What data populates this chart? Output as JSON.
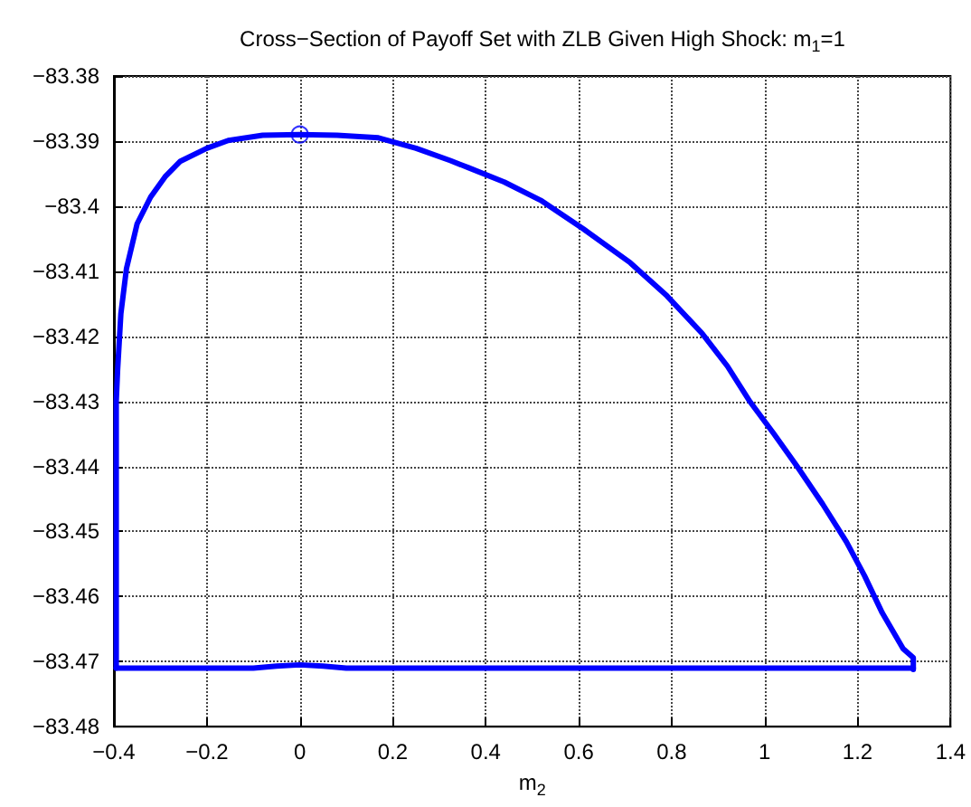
{
  "chart_data": {
    "type": "line",
    "title": "Cross−Section of Payoff Set with ZLB Given High Shock: m$_{1}$=1",
    "xlabel": "m$_{2}$",
    "series": [
      {
        "color": "#0000ff",
        "marker": "none",
        "line_style": "solid",
        "x": [
          -0.395,
          -0.395,
          -0.392,
          -0.385,
          -0.373,
          -0.35,
          -0.321,
          -0.29,
          -0.257,
          -0.2,
          -0.154,
          -0.08,
          0,
          0.08,
          0.169,
          0.25,
          0.324,
          0.363,
          0.44,
          0.518,
          0.61,
          0.711,
          0.79,
          0.866,
          0.92,
          0.969,
          1.02,
          1.072,
          1.125,
          1.176,
          1.215,
          1.253,
          1.298,
          1.32,
          1.32
        ],
        "values": [
          -83.471,
          -83.43,
          -83.4251,
          -83.4165,
          -83.4096,
          -83.4027,
          -83.3986,
          -83.3955,
          -83.3931,
          -83.3911,
          -83.3899,
          -83.3891,
          -83.389,
          -83.3891,
          -83.3895,
          -83.3911,
          -83.393,
          -83.3941,
          -83.3963,
          -83.3991,
          -83.4035,
          -83.4087,
          -83.4138,
          -83.4196,
          -83.4246,
          -83.4301,
          -83.435,
          -83.4402,
          -83.4458,
          -83.4516,
          -83.4568,
          -83.4625,
          -83.468,
          -83.4694,
          -83.4712
        ]
      },
      {
        "color": "#0000ff",
        "marker": "none",
        "line_style": "solid",
        "x": [
          -0.395,
          -0.1,
          -0.05,
          0,
          0.05,
          0.1,
          0.4,
          0.8,
          1.2,
          1.32
        ],
        "values": [
          -83.471,
          -83.471,
          -83.4707,
          -83.4705,
          -83.4707,
          -83.471,
          -83.471,
          -83.471,
          -83.471,
          -83.471
        ]
      },
      {
        "type": "scatter",
        "color": "#0000ff",
        "marker": "circle",
        "x": [
          0
        ],
        "values": [
          -83.389
        ]
      }
    ],
    "xlim": [
      -0.4,
      1.4
    ],
    "xticks": [
      {
        "value": -0.4,
        "label": "−0.4"
      },
      {
        "value": -0.2,
        "label": "−0.2"
      },
      0,
      0.2,
      0.4,
      0.6,
      0.8,
      1,
      1.2,
      1.4
    ],
    "ylim": [
      -83.48,
      -83.38
    ],
    "yticks": [
      {
        "value": -83.48,
        "label": "−83.48"
      },
      {
        "value": -83.47,
        "label": "−83.47"
      },
      {
        "value": -83.46,
        "label": "−83.46"
      },
      {
        "value": -83.45,
        "label": "−83.45"
      },
      {
        "value": -83.44,
        "label": "−83.44"
      },
      {
        "value": -83.43,
        "label": "−83.43"
      },
      {
        "value": -83.42,
        "label": "−83.42"
      },
      {
        "value": -83.41,
        "label": "−83.41"
      },
      {
        "value": -83.4,
        "label": "−83.4"
      },
      {
        "value": -83.39,
        "label": "−83.39"
      },
      {
        "value": -83.38,
        "label": "−83.38"
      }
    ],
    "grid": true
  }
}
